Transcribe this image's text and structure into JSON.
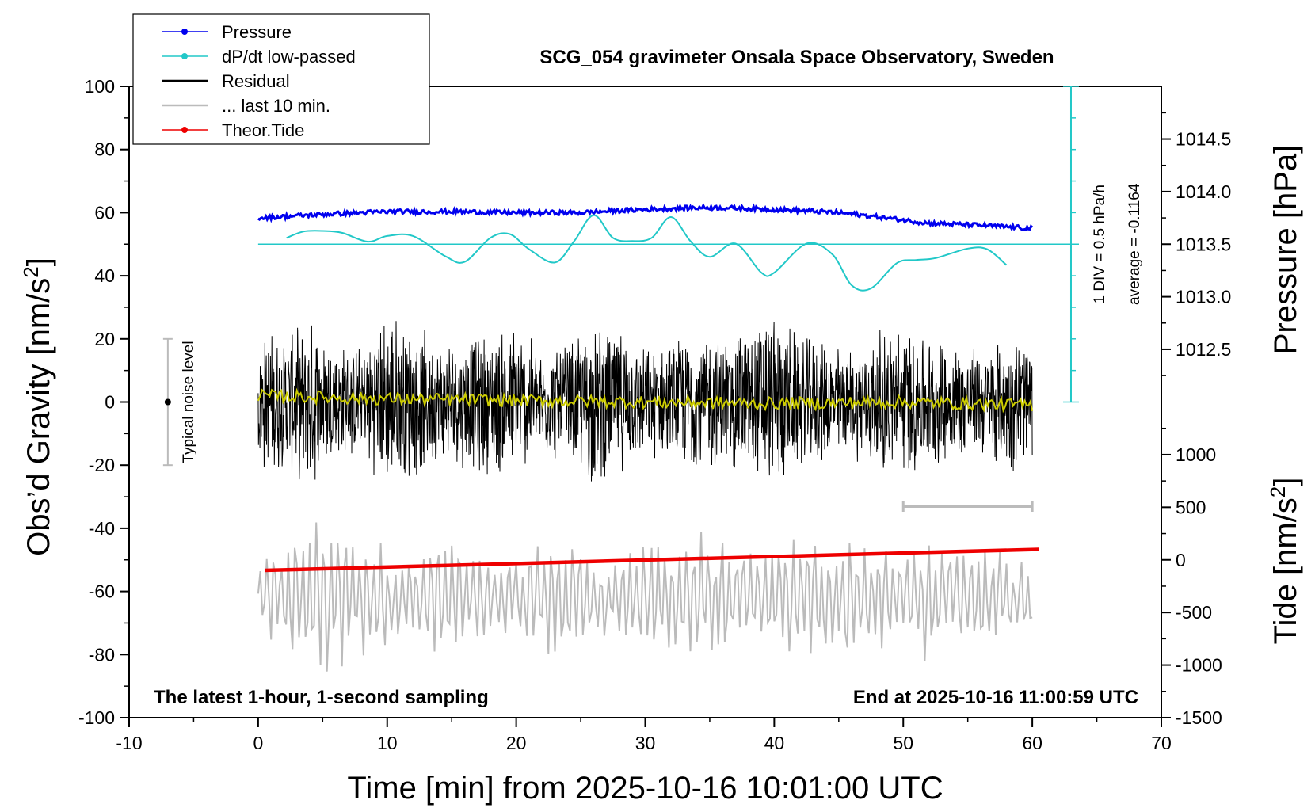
{
  "chart_data": {
    "type": "line",
    "title": "SCG_054 gravimeter Onsala Space Observatory, Sweden",
    "xlabel": "Time [min] from 2025-10-16 10:01:00 UTC",
    "ylabel_left": "Obs’d Gravity [nm/s²]",
    "ylabel_left_main": "Obs’d Gravity [nm/s",
    "ylabel_left_sup": "2",
    "ylabel_left_close": "]",
    "ylabel_right_pressure": "Pressure [hPa]",
    "ylabel_right_tide": "Tide [nm/s²]",
    "ylabel_right_tide_main": "Tide [nm/s",
    "ylabel_right_tide_sup": "2",
    "ylabel_right_tide_close": "]",
    "xlim": [
      -10,
      70
    ],
    "ylim": [
      -100,
      100
    ],
    "xticks": [
      -10,
      0,
      10,
      20,
      30,
      40,
      50,
      60,
      70
    ],
    "yticks": [
      100,
      80,
      60,
      40,
      20,
      0,
      -20,
      -40,
      -60,
      -80,
      -100
    ],
    "pressure_axis": {
      "ticks": [
        1014.5,
        1014.0,
        1013.5,
        1013.0,
        1012.5
      ],
      "tick_labels": [
        "1014.5",
        "1014.0",
        "1013.5",
        "1013.0",
        "1012.5"
      ],
      "gravity_at_1013.5": 50,
      "gravity_per_hPa": 33.3
    },
    "tide_axis": {
      "ticks": [
        1000,
        500,
        0,
        -500,
        -1000,
        -1500
      ],
      "gravity_at_0": -50,
      "gravity_per_unit": 0.03333
    },
    "dpdt_axis": {
      "label": "1 DIV = 0.5 hPa/h",
      "average_label": "average = -0.1164",
      "x_position": 63,
      "range": [
        0,
        100
      ],
      "zero_level": 50,
      "gravity_per_hPa_h": 20
    },
    "noise_bar": {
      "label": "Typical noise level",
      "x": -7,
      "range": [
        -20,
        20
      ],
      "center": 0
    },
    "last10_bar": {
      "x_range": [
        50,
        60
      ],
      "y": -33
    },
    "annotation_left": "The latest 1-hour, 1-second sampling",
    "annotation_right": "End at 2025-10-16 11:00:59 UTC",
    "legend": [
      {
        "label": "Pressure",
        "color": "#0000ee",
        "marker": true
      },
      {
        "label": "dP/dt low-passed",
        "color": "#22c8c8",
        "marker": true
      },
      {
        "label": "Residual",
        "color": "#000000",
        "marker": false
      },
      {
        "label": "... last 10 min.",
        "color": "#bbbbbb",
        "marker": false
      },
      {
        "label": "Theor.Tide",
        "color": "#ee0000",
        "marker": true
      }
    ],
    "series": [
      {
        "name": "Pressure",
        "color": "#0000ee",
        "unit": "hPa",
        "x": [
          0,
          3,
          6,
          10,
          15,
          20,
          25,
          28,
          32,
          35,
          38,
          42,
          45,
          48,
          52,
          56,
          60
        ],
        "values": [
          1013.75,
          1013.77,
          1013.79,
          1013.81,
          1013.81,
          1013.8,
          1013.8,
          1013.82,
          1013.84,
          1013.85,
          1013.84,
          1013.82,
          1013.8,
          1013.76,
          1013.7,
          1013.68,
          1013.65
        ]
      },
      {
        "name": "dP/dt low-passed",
        "color": "#22c8c8",
        "unit": "hPa/h",
        "x": [
          2.2,
          3.5,
          5,
          6.5,
          8.5,
          10,
          12,
          14.5,
          16,
          18,
          19.5,
          21,
          23,
          24.5,
          26,
          27.5,
          29,
          30.5,
          32,
          33.5,
          35,
          37,
          39,
          40,
          42.5,
          44.5,
          46,
          47.5,
          49.5,
          51,
          52.5,
          55,
          56.5,
          58
        ],
        "values": [
          0.1,
          0.2,
          0.21,
          0.18,
          0.04,
          0.13,
          0.13,
          -0.19,
          -0.28,
          0.1,
          0.16,
          -0.08,
          -0.29,
          0.05,
          0.46,
          0.1,
          0.05,
          0.1,
          0.43,
          0.05,
          -0.2,
          0.01,
          -0.45,
          -0.45,
          0.01,
          -0.16,
          -0.65,
          -0.7,
          -0.3,
          -0.25,
          -0.22,
          -0.07,
          -0.08,
          -0.33
        ]
      },
      {
        "name": "Residual",
        "color": "#000000",
        "unit": "nm/s²",
        "x": [
          0,
          60
        ],
        "amplitude_envelope": [
          24,
          22,
          28,
          20,
          18,
          30,
          26,
          20,
          22,
          24,
          26,
          18,
          20,
          28,
          24,
          18,
          20,
          24,
          22,
          26,
          30,
          22,
          20,
          18,
          24,
          26,
          22,
          20,
          18,
          22,
          24
        ]
      },
      {
        "name": "Residual low-passed",
        "color": "#cccc00",
        "unit": "nm/s²",
        "x": [
          0,
          10,
          20,
          30,
          40,
          50,
          60
        ],
        "values": [
          2,
          1,
          0.5,
          0,
          -0.5,
          0,
          -1
        ]
      },
      {
        "name": "... last 10 min.",
        "color": "#bbbbbb",
        "unit": "nm/s²",
        "x": [
          0,
          60
        ],
        "center": -62,
        "amplitude_envelope": [
          14,
          16,
          28,
          26,
          20,
          16,
          14,
          20,
          16,
          12,
          14,
          22,
          18,
          14,
          12,
          20,
          16,
          22,
          18,
          14,
          16,
          20,
          18,
          22,
          16,
          18,
          20,
          16,
          14,
          16,
          12
        ]
      },
      {
        "name": "Theor.Tide",
        "color": "#ee0000",
        "unit": "nm/s²",
        "x": [
          0.5,
          60.5
        ],
        "values": [
          -100,
          100
        ]
      }
    ]
  }
}
